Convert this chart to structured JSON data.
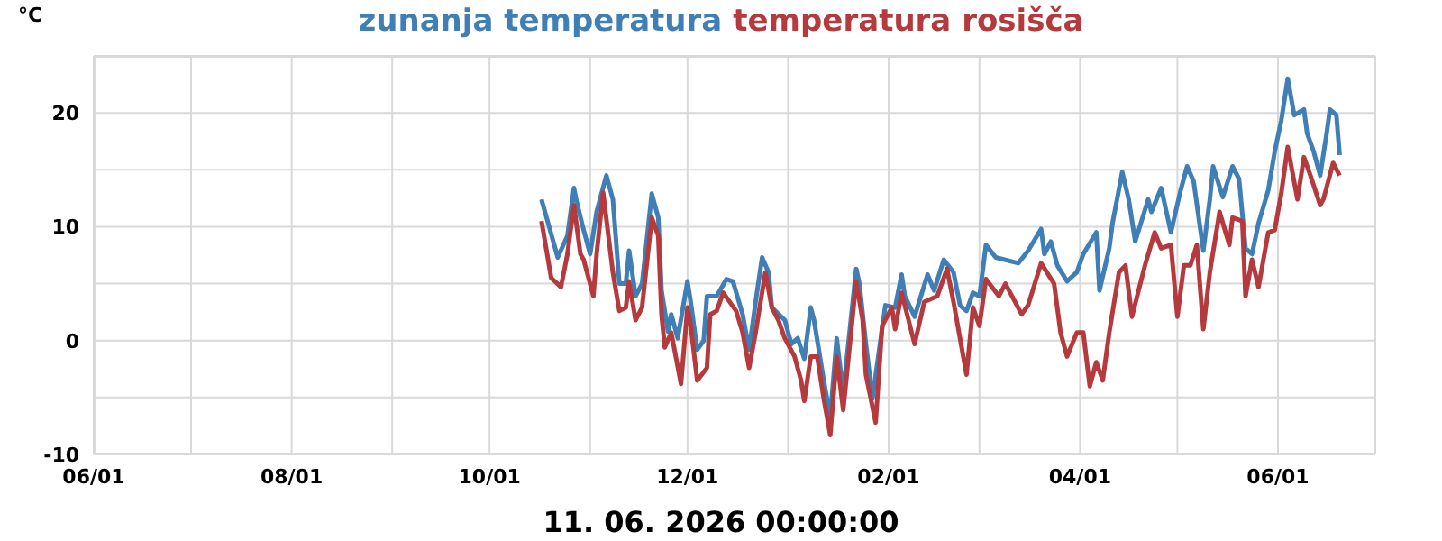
{
  "chart_data": {
    "type": "line",
    "ylabel": "°C",
    "xlabel": "11. 06. 2026 00:00:00",
    "legend": "top",
    "grid": true,
    "marker": "none",
    "line_style": "solid",
    "xlim": [
      "2025-06-01",
      "2026-07-01"
    ],
    "xticks": [
      {
        "value": "2025-06-01",
        "label": "06/01"
      },
      {
        "value": "2025-07-01",
        "label": null
      },
      {
        "value": "2025-08-01",
        "label": "08/01"
      },
      {
        "value": "2025-09-01",
        "label": null
      },
      {
        "value": "2025-10-01",
        "label": "10/01"
      },
      {
        "value": "2025-11-01",
        "label": null
      },
      {
        "value": "2025-12-01",
        "label": "12/01"
      },
      {
        "value": "2026-01-01",
        "label": null
      },
      {
        "value": "2026-02-01",
        "label": "02/01"
      },
      {
        "value": "2026-03-01",
        "label": null
      },
      {
        "value": "2026-04-01",
        "label": "04/01"
      },
      {
        "value": "2026-05-01",
        "label": null
      },
      {
        "value": "2026-06-01",
        "label": "06/01"
      }
    ],
    "ylim": [
      -10,
      25
    ],
    "yticks": [
      -10,
      {
        "value": -5,
        "label": null
      },
      0,
      {
        "value": 5,
        "label": null
      },
      10,
      {
        "value": 15,
        "label": null
      },
      20
    ],
    "series": [
      {
        "name": "zunanja temperatura",
        "color": "#3f7fb5",
        "x": [
          "2025-10-17",
          "2025-10-22",
          "2025-10-25",
          "2025-10-27",
          "2025-10-28",
          "2025-10-30",
          "2025-11-01",
          "2025-11-03",
          "2025-11-06",
          "2025-11-08",
          "2025-11-10",
          "2025-11-12",
          "2025-11-13",
          "2025-11-15",
          "2025-11-17",
          "2025-11-20",
          "2025-11-22",
          "2025-11-23",
          "2025-11-25",
          "2025-11-26",
          "2025-11-28",
          "2025-12-01",
          "2025-12-02",
          "2025-12-04",
          "2025-12-06",
          "2025-12-07",
          "2025-12-10",
          "2025-12-13",
          "2025-12-15",
          "2025-12-18",
          "2025-12-20",
          "2025-12-22",
          "2025-12-24",
          "2025-12-26",
          "2025-12-27",
          "2025-12-31",
          "2026-01-02",
          "2026-01-04",
          "2026-01-06",
          "2026-01-08",
          "2026-01-09",
          "2026-01-12",
          "2026-01-14",
          "2026-01-16",
          "2026-01-18",
          "2026-01-22",
          "2026-01-23",
          "2026-01-25",
          "2026-01-27",
          "2026-01-31",
          "2026-02-03",
          "2026-02-05",
          "2026-02-06",
          "2026-02-09",
          "2026-02-13",
          "2026-02-15",
          "2026-02-18",
          "2026-02-21",
          "2026-02-23",
          "2026-02-25",
          "2026-02-27",
          "2026-03-01",
          "2026-03-03",
          "2026-03-06",
          "2026-03-13",
          "2026-03-16",
          "2026-03-20",
          "2026-03-21",
          "2026-03-23",
          "2026-03-25",
          "2026-03-28",
          "2026-03-31",
          "2026-04-02",
          "2026-04-06",
          "2026-04-07",
          "2026-04-10",
          "2026-04-11",
          "2026-04-14",
          "2026-04-16",
          "2026-04-18",
          "2026-04-22",
          "2026-04-23",
          "2026-04-26",
          "2026-04-29",
          "2026-05-02",
          "2026-05-04",
          "2026-05-06",
          "2026-05-09",
          "2026-05-11",
          "2026-05-12",
          "2026-05-15",
          "2026-05-18",
          "2026-05-20",
          "2026-05-22",
          "2026-05-24",
          "2026-05-26",
          "2026-05-29",
          "2026-05-31",
          "2026-06-02",
          "2026-06-04",
          "2026-06-06",
          "2026-06-09",
          "2026-06-10",
          "2026-06-12",
          "2026-06-14",
          "2026-06-16",
          "2026-06-17",
          "2026-06-19",
          "2026-06-20"
        ],
        "values": [
          12.4,
          7.3,
          9.2,
          13.4,
          12.0,
          9.7,
          7.6,
          11.3,
          14.5,
          12.4,
          5.0,
          5.0,
          7.9,
          3.9,
          5.0,
          12.9,
          10.8,
          4.4,
          0.8,
          2.3,
          0.2,
          5.2,
          3.4,
          -0.8,
          0,
          3.9,
          3.9,
          5.4,
          5.2,
          2.3,
          -0.8,
          3.4,
          7.3,
          6.0,
          2.9,
          1.8,
          -0.3,
          0.2,
          -1.6,
          2.9,
          1.8,
          -3.5,
          -6.7,
          0.2,
          -4.6,
          6.3,
          5.0,
          -0.3,
          -5.1,
          3.1,
          2.9,
          5.8,
          3.9,
          2.1,
          5.8,
          4.4,
          7.1,
          6.0,
          3.1,
          2.6,
          4.2,
          3.9,
          8.4,
          7.3,
          6.8,
          7.9,
          9.8,
          7.6,
          8.7,
          6.6,
          5.2,
          6.0,
          7.6,
          9.5,
          4.4,
          8.1,
          10.3,
          14.8,
          12.4,
          8.7,
          12.4,
          11.3,
          13.4,
          9.5,
          13.2,
          15.3,
          14.0,
          7.9,
          12.4,
          15.3,
          12.6,
          15.3,
          14.2,
          8.1,
          7.6,
          10.3,
          13.2,
          16.6,
          19.3,
          23.0,
          19.8,
          20.3,
          18.2,
          16.6,
          14.5,
          18.2,
          20.3,
          19.8,
          16.3
        ]
      },
      {
        "name": "temperatura rosišča",
        "color": "#b53a3e",
        "x": [
          "2025-10-17",
          "2025-10-20",
          "2025-10-23",
          "2025-10-25",
          "2025-10-27",
          "2025-10-29",
          "2025-10-30",
          "2025-11-02",
          "2025-11-03",
          "2025-11-05",
          "2025-11-08",
          "2025-11-10",
          "2025-11-12",
          "2025-11-13",
          "2025-11-15",
          "2025-11-17",
          "2025-11-20",
          "2025-11-22",
          "2025-11-23",
          "2025-11-24",
          "2025-11-26",
          "2025-11-29",
          "2025-12-01",
          "2025-12-02",
          "2025-12-04",
          "2025-12-07",
          "2025-12-08",
          "2025-12-10",
          "2025-12-12",
          "2025-12-16",
          "2025-12-18",
          "2025-12-20",
          "2025-12-22",
          "2025-12-25",
          "2025-12-27",
          "2025-12-29",
          "2025-12-31",
          "2026-01-03",
          "2026-01-05",
          "2026-01-06",
          "2026-01-08",
          "2026-01-10",
          "2026-01-12",
          "2026-01-14",
          "2026-01-16",
          "2026-01-18",
          "2026-01-22",
          "2026-01-24",
          "2026-01-25",
          "2026-01-28",
          "2026-01-30",
          "2026-02-02",
          "2026-02-03",
          "2026-02-05",
          "2026-02-09",
          "2026-02-12",
          "2026-02-16",
          "2026-02-19",
          "2026-02-21",
          "2026-02-25",
          "2026-02-27",
          "2026-03-01",
          "2026-03-03",
          "2026-03-07",
          "2026-03-09",
          "2026-03-14",
          "2026-03-16",
          "2026-03-20",
          "2026-03-24",
          "2026-03-26",
          "2026-03-28",
          "2026-03-31",
          "2026-04-02",
          "2026-04-04",
          "2026-04-06",
          "2026-04-08",
          "2026-04-10",
          "2026-04-13",
          "2026-04-15",
          "2026-04-17",
          "2026-04-21",
          "2026-04-24",
          "2026-04-26",
          "2026-04-29",
          "2026-05-01",
          "2026-05-03",
          "2026-05-05",
          "2026-05-07",
          "2026-05-09",
          "2026-05-11",
          "2026-05-14",
          "2026-05-17",
          "2026-05-18",
          "2026-05-21",
          "2026-05-22",
          "2026-05-24",
          "2026-05-26",
          "2026-05-29",
          "2026-05-31",
          "2026-06-02",
          "2026-06-04",
          "2026-06-07",
          "2026-06-09",
          "2026-06-11",
          "2026-06-14",
          "2026-06-15",
          "2026-06-18",
          "2026-06-20"
        ],
        "values": [
          10.5,
          5.5,
          4.7,
          7.6,
          11.9,
          7.6,
          7.1,
          3.9,
          7.6,
          13.0,
          6.0,
          2.6,
          2.9,
          5.2,
          1.8,
          2.9,
          10.8,
          9.2,
          2.3,
          -0.6,
          0.7,
          -3.8,
          2.9,
          1.3,
          -3.5,
          -2.4,
          2.3,
          2.6,
          4.2,
          2.6,
          0.7,
          -2.4,
          0.7,
          6.0,
          2.9,
          1.8,
          0.2,
          -1.4,
          -3.5,
          -5.3,
          -1.4,
          -1.4,
          -5.1,
          -8.3,
          -1.4,
          -6.1,
          5.2,
          1.8,
          -3.0,
          -7.2,
          1.3,
          2.9,
          1.0,
          4.2,
          -0.3,
          3.4,
          3.9,
          6.3,
          3.4,
          -3.0,
          2.9,
          1.3,
          5.4,
          3.9,
          5.0,
          2.3,
          3.1,
          6.8,
          5.0,
          0.7,
          -1.4,
          0.7,
          0.7,
          -4.0,
          -1.9,
          -3.5,
          0.7,
          6.0,
          6.6,
          2.1,
          6.6,
          9.5,
          8.1,
          8.4,
          2.1,
          6.6,
          6.6,
          8.4,
          1.0,
          6.0,
          11.3,
          8.4,
          10.8,
          10.5,
          3.9,
          7.1,
          4.7,
          9.5,
          9.7,
          12.9,
          17.0,
          12.4,
          16.1,
          14.5,
          11.9,
          12.4,
          15.6,
          14.5
        ]
      }
    ]
  }
}
